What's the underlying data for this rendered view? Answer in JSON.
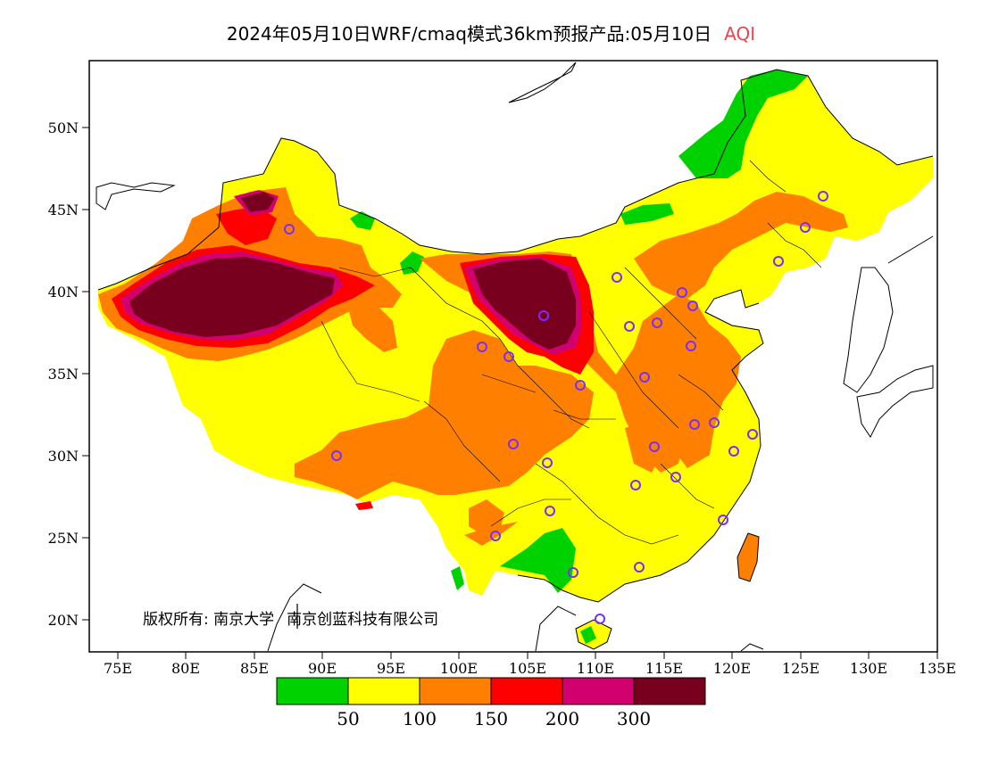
{
  "title": {
    "main": "2024年05月10日WRF/cmaq模式36km预报产品:05月10日",
    "variable": "AQI",
    "variable_color": "#e8454f"
  },
  "axes": {
    "y_ticks": [
      "50N",
      "45N",
      "40N",
      "35N",
      "30N",
      "25N",
      "20N"
    ],
    "x_ticks": [
      "75E",
      "80E",
      "85E",
      "90E",
      "95E",
      "100E",
      "105E",
      "110E",
      "115E",
      "120E",
      "125E",
      "130E",
      "135E"
    ]
  },
  "copyright": {
    "owner": "版权所有: 南京大学",
    "company": "南京创蓝科技有限公司"
  },
  "legend": {
    "colors": [
      "#00d200",
      "#ffff00",
      "#ff8000",
      "#ff0000",
      "#d2006e",
      "#78001e"
    ],
    "labels": [
      "50",
      "100",
      "150",
      "200",
      "300"
    ]
  },
  "map_colors": {
    "good": "#00d200",
    "moderate": "#ffff00",
    "sensitive": "#ff8000",
    "unhealthy": "#ff0000",
    "very_unhealthy": "#d2006e",
    "hazardous": "#78001e",
    "station_marker": "#7b2cff"
  }
}
